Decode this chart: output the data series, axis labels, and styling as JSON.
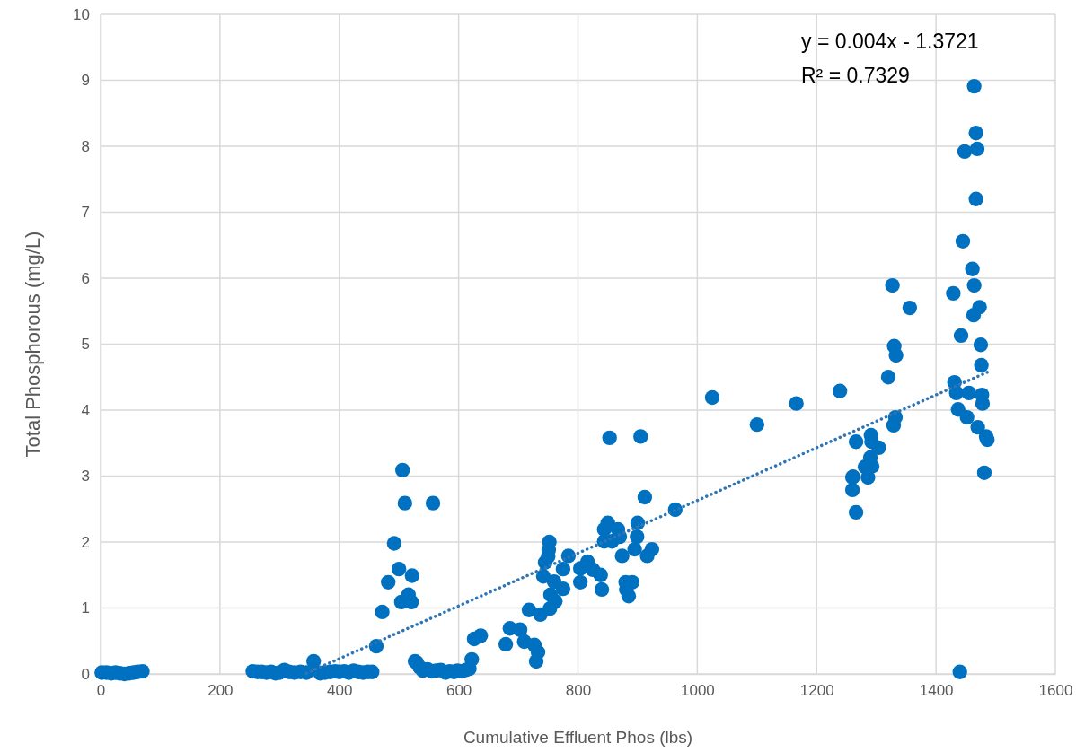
{
  "chart_data": {
    "type": "scatter",
    "xlabel": "Cumulative Effluent Phos (lbs)",
    "ylabel": "Total Phosphorous (mg/L)",
    "xlim": [
      0,
      1600
    ],
    "xticks": [
      0,
      200,
      400,
      600,
      800,
      1000,
      1200,
      1400,
      1600
    ],
    "ylim": [
      0,
      10
    ],
    "yticks": [
      0,
      1,
      2,
      3,
      4,
      5,
      6,
      7,
      8,
      9,
      10
    ],
    "grid": true,
    "annotations": [
      "y = 0.004x - 1.3721",
      "R² = 0.7329"
    ],
    "series": [
      {
        "color": "#0070c0",
        "marker": "circle",
        "x": [
          2,
          10,
          18,
          25,
          32,
          40,
          48,
          55,
          62,
          70,
          255,
          263,
          270,
          278,
          286,
          293,
          300,
          308,
          316,
          325,
          335,
          345,
          368,
          376,
          385,
          393,
          400,
          408,
          416,
          424,
          432,
          440,
          448,
          455,
          357,
          462,
          472,
          482,
          492,
          500,
          504,
          506,
          510,
          516,
          521,
          522,
          557,
          527,
          530,
          535,
          540,
          548,
          555,
          562,
          570,
          578,
          585,
          592,
          598,
          605,
          612,
          618,
          622,
          626,
          637,
          679,
          686,
          703,
          710,
          727,
          733,
          730,
          718,
          737,
          753,
          762,
          754,
          775,
          760,
          742,
          745,
          750,
          751,
          752,
          775,
          784,
          804,
          816,
          825,
          838,
          804,
          840,
          880,
          891,
          881,
          885,
          844,
          857,
          844,
          867,
          850,
          870,
          900,
          899,
          895,
          874,
          916,
          924,
          912,
          963,
          853,
          905,
          1025,
          1100,
          1166,
          1239,
          1260,
          1266,
          1260,
          1261,
          1286,
          1281,
          1293,
          1290,
          1304,
          1266,
          1292,
          1291,
          1329,
          1332,
          1320,
          1330,
          1333,
          1327,
          1356,
          1429,
          1431,
          1434,
          1437,
          1440,
          1442,
          1445,
          1448,
          1452,
          1455,
          1461,
          1463,
          1464,
          1464,
          1467,
          1467,
          1469,
          1470,
          1473,
          1475,
          1476,
          1477,
          1478,
          1481,
          1484,
          1486
        ],
        "values": [
          0.02,
          0.02,
          0.01,
          0.02,
          0.01,
          0.0,
          0.01,
          0.02,
          0.03,
          0.04,
          0.04,
          0.03,
          0.03,
          0.02,
          0.03,
          0.01,
          0.02,
          0.06,
          0.03,
          0.02,
          0.03,
          0.02,
          0.01,
          0.02,
          0.03,
          0.04,
          0.03,
          0.04,
          0.02,
          0.05,
          0.03,
          0.02,
          0.03,
          0.03,
          0.19,
          0.42,
          0.94,
          1.39,
          1.98,
          1.59,
          1.09,
          3.09,
          2.59,
          1.2,
          1.09,
          1.49,
          2.59,
          0.19,
          0.17,
          0.1,
          0.05,
          0.07,
          0.04,
          0.05,
          0.06,
          0.02,
          0.04,
          0.03,
          0.05,
          0.04,
          0.06,
          0.08,
          0.22,
          0.53,
          0.58,
          0.45,
          0.69,
          0.67,
          0.49,
          0.44,
          0.33,
          0.19,
          0.97,
          0.9,
          0.99,
          1.1,
          1.2,
          1.29,
          1.4,
          1.48,
          1.69,
          1.78,
          1.88,
          2.0,
          1.59,
          1.79,
          1.6,
          1.7,
          1.58,
          1.5,
          1.39,
          1.28,
          1.39,
          1.39,
          1.28,
          1.18,
          2.01,
          2.01,
          2.19,
          2.19,
          2.29,
          2.08,
          2.29,
          2.08,
          1.89,
          1.79,
          1.79,
          1.89,
          2.68,
          2.49,
          3.58,
          3.6,
          4.19,
          3.78,
          4.1,
          4.29,
          2.79,
          2.45,
          2.98,
          2.99,
          2.98,
          3.14,
          3.15,
          3.28,
          3.43,
          3.52,
          3.52,
          3.62,
          3.77,
          3.89,
          4.5,
          4.97,
          4.83,
          5.89,
          5.55,
          5.77,
          4.42,
          4.26,
          4.01,
          0.03,
          5.13,
          6.56,
          7.92,
          3.89,
          4.26,
          6.14,
          5.44,
          5.89,
          8.91,
          8.2,
          7.2,
          7.96,
          3.74,
          5.56,
          4.99,
          4.68,
          4.23,
          4.1,
          3.05,
          3.6,
          3.55
        ]
      },
      {
        "type": "line",
        "color": "#2e75b6",
        "line_style": "dotted",
        "marker": "none",
        "x": [
          345,
          1490
        ],
        "values": [
          0.01,
          4.59
        ]
      }
    ]
  }
}
